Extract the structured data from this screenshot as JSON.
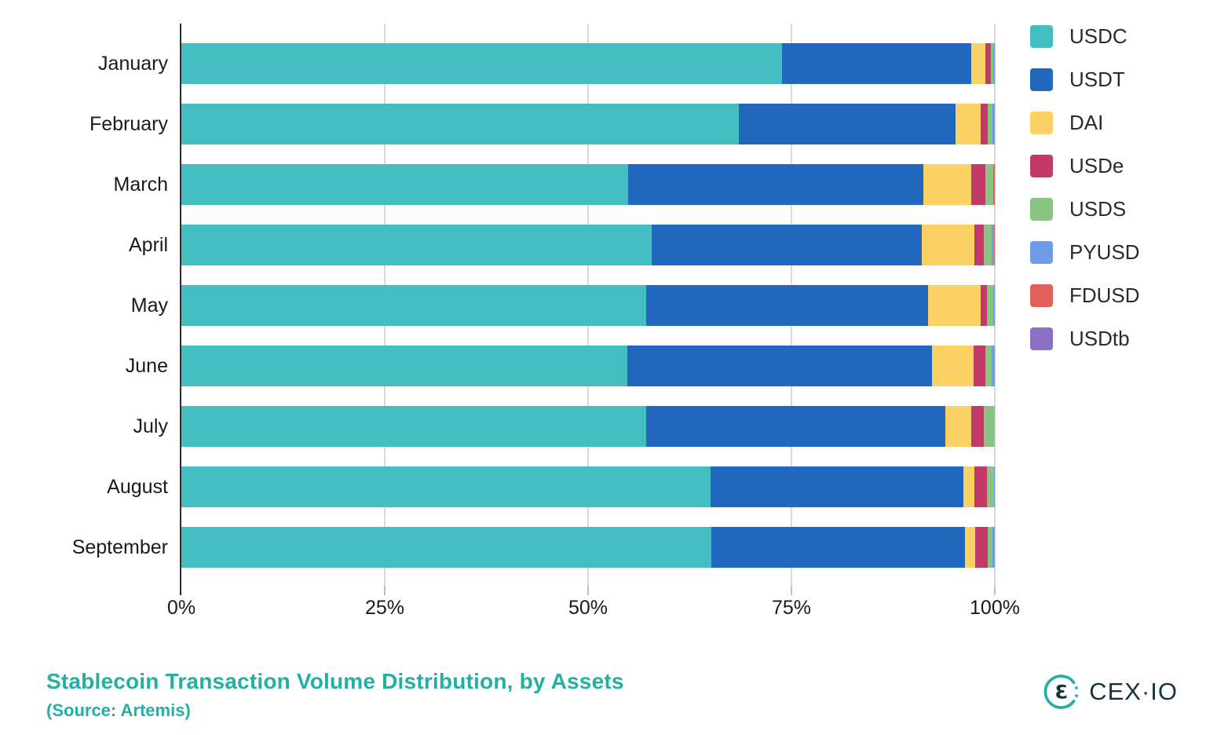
{
  "chart_data": {
    "type": "bar",
    "orientation": "horizontal",
    "stacked": true,
    "unit": "percent",
    "categories": [
      "January",
      "February",
      "March",
      "April",
      "May",
      "June",
      "July",
      "August",
      "September"
    ],
    "series": [
      {
        "name": "USDC",
        "color": "#45BEC2",
        "values": [
          73.8,
          68.5,
          54.9,
          57.8,
          57.1,
          54.8,
          57.1,
          65.1,
          65.2
        ]
      },
      {
        "name": "USDT",
        "color": "#2268BE",
        "values": [
          23.3,
          26.7,
          36.3,
          33.2,
          34.7,
          37.5,
          36.8,
          31.0,
          31.1
        ]
      },
      {
        "name": "DAI",
        "color": "#FCD265",
        "values": [
          1.7,
          3.1,
          5.9,
          6.5,
          6.5,
          5.1,
          3.2,
          1.4,
          1.3
        ]
      },
      {
        "name": "USDe",
        "color": "#C23A68",
        "values": [
          0.7,
          0.8,
          1.7,
          1.2,
          0.7,
          1.4,
          1.6,
          1.5,
          1.5
        ]
      },
      {
        "name": "USDS",
        "color": "#8AC483",
        "values": [
          0.3,
          0.6,
          1.0,
          0.9,
          0.8,
          0.8,
          1.3,
          0.9,
          0.6
        ]
      },
      {
        "name": "PYUSD",
        "color": "#6F9BEB",
        "values": [
          0.2,
          0.3,
          0.0,
          0.3,
          0.2,
          0.4,
          0.0,
          0.1,
          0.3
        ]
      },
      {
        "name": "FDUSD",
        "color": "#E2605C",
        "values": [
          0.0,
          0.0,
          0.2,
          0.1,
          0.0,
          0.0,
          0.0,
          0.0,
          0.0
        ]
      },
      {
        "name": "USDtb",
        "color": "#8B70C6",
        "values": [
          0.0,
          0.0,
          0.0,
          0.0,
          0.0,
          0.0,
          0.0,
          0.0,
          0.0
        ]
      }
    ],
    "xlim": [
      0,
      100
    ],
    "xticks": [
      "0%",
      "25%",
      "50%",
      "75%",
      "100%"
    ],
    "xtick_positions": [
      0,
      25,
      50,
      75,
      100
    ],
    "grid": true,
    "legend_position": "right"
  },
  "title": {
    "text": "Stablecoin Transaction Volume Distribution, by Assets",
    "source": "(Source: Artemis)",
    "color": "#23AFA5"
  },
  "branding": {
    "logo_text": "CEX·IO",
    "logo_text_color": "#16323F",
    "logo_mark_color": "#23AFA5"
  }
}
